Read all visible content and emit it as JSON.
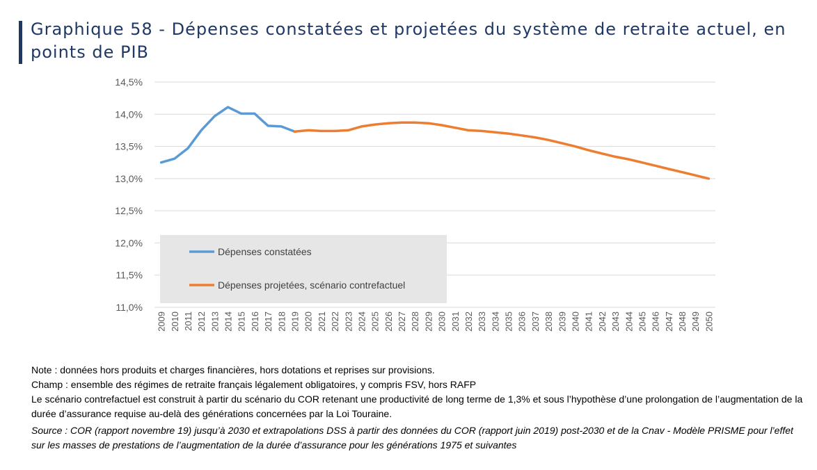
{
  "header": {
    "title": "Graphique 58 - Dépenses constatées et projetées du système de retraite actuel, en points de PIB"
  },
  "chart_data": {
    "type": "line",
    "title": "",
    "xlabel": "",
    "ylabel": "",
    "ylim": [
      11.0,
      14.5
    ],
    "yticks": [
      "11,0%",
      "11,5%",
      "12,0%",
      "12,5%",
      "13,0%",
      "13,5%",
      "14,0%",
      "14,5%"
    ],
    "grid": true,
    "legend_position": "bottom-left, inside plot, grey box",
    "x": [
      "2009",
      "2010",
      "2011",
      "2012",
      "2013",
      "2014",
      "2015",
      "2016",
      "2017",
      "2018",
      "2019",
      "2020",
      "2021",
      "2022",
      "2023",
      "2024",
      "2025",
      "2026",
      "2027",
      "2028",
      "2029",
      "2030",
      "2031",
      "2032",
      "2033",
      "2034",
      "2035",
      "2036",
      "2037",
      "2038",
      "2039",
      "2040",
      "2041",
      "2042",
      "2043",
      "2044",
      "2045",
      "2046",
      "2047",
      "2048",
      "2049",
      "2050"
    ],
    "series": [
      {
        "name": "Dépenses constatées",
        "color": "#5b9bd5",
        "values": [
          13.25,
          13.31,
          13.47,
          13.75,
          13.97,
          14.11,
          14.01,
          14.01,
          13.82,
          13.81,
          13.73,
          null,
          null,
          null,
          null,
          null,
          null,
          null,
          null,
          null,
          null,
          null,
          null,
          null,
          null,
          null,
          null,
          null,
          null,
          null,
          null,
          null,
          null,
          null,
          null,
          null,
          null,
          null,
          null,
          null,
          null,
          null
        ]
      },
      {
        "name": "Dépenses projetées, scénario contrefactuel",
        "color": "#ed7d31",
        "values": [
          null,
          null,
          null,
          null,
          null,
          null,
          null,
          null,
          null,
          null,
          13.73,
          13.75,
          13.74,
          13.74,
          13.75,
          13.81,
          13.84,
          13.86,
          13.87,
          13.87,
          13.86,
          13.83,
          13.79,
          13.75,
          13.74,
          13.72,
          13.7,
          13.67,
          13.64,
          13.6,
          13.55,
          13.5,
          13.44,
          13.39,
          13.34,
          13.3,
          13.25,
          13.2,
          13.15,
          13.1,
          13.05,
          13.0
        ]
      }
    ]
  },
  "notes": {
    "note": "Note : données hors produits et charges financières, hors dotations et reprises sur provisions.",
    "champ": "Champ : ensemble des régimes de retraite français légalement obligatoires, y compris FSV, hors RAFP",
    "scenario": "Le scénario contrefactuel est construit à partir du scénario du COR retenant une productivité de long terme de 1,3% et sous l’hypothèse d’une prolongation de l’augmentation de la durée d’assurance requise au-delà des générations concernées par la Loi Touraine.",
    "source": "Source : COR (rapport novembre 19) jusqu’à 2030 et extrapolations DSS à partir des données du COR (rapport juin 2019) post-2030 et de la Cnav - Modèle PRISME pour l’effet sur les masses de prestations de l’augmentation de la durée d’assurance pour les générations 1975 et suivantes"
  }
}
